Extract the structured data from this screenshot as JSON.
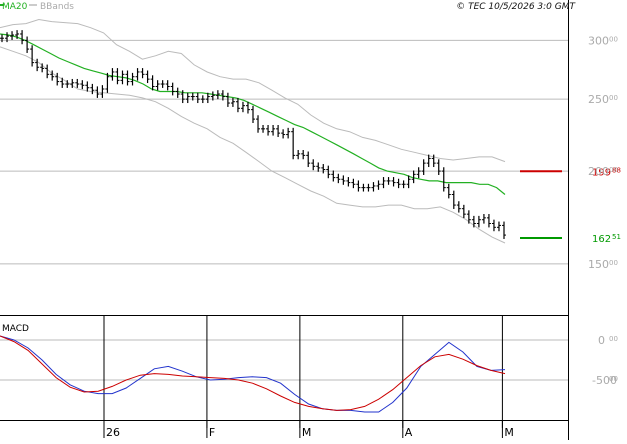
{
  "header": {
    "ma_label": "MA20",
    "bb_label": "BBands",
    "copyright": "© TEC 10/5/2026 3:0 GMT"
  },
  "colors": {
    "ma": "#22b022",
    "bbands": "#bbbbbb",
    "price_bars": "#000000",
    "grid": "#bbbbbb",
    "resistance": "#cc0000",
    "support": "#009900",
    "macd": "#2233cc",
    "signal": "#cc0000"
  },
  "chart_data": [
    {
      "type": "ohlc",
      "panel": "price",
      "scale": "log",
      "ylim": [
        128,
        340
      ],
      "yticks": [
        {
          "value": 150,
          "label": "150"
        },
        {
          "value": 200,
          "label": "200"
        },
        {
          "value": 250,
          "label": "250"
        },
        {
          "value": 300,
          "label": "300"
        }
      ],
      "tick_suffix": "00",
      "x_start": "2025-12-15",
      "x_labels": [
        {
          "label": "26",
          "date": "2026-01-01"
        },
        {
          "label": "F",
          "date": "2026-02-01"
        },
        {
          "label": "M",
          "date": "2026-03-01"
        },
        {
          "label": "A",
          "date": "2026-04-01"
        },
        {
          "label": "M",
          "date": "2026-05-01"
        }
      ],
      "grid": true,
      "levels": [
        {
          "name": "resistance",
          "value": 199.88,
          "int": "199",
          "dec": "88",
          "color": "#cc0000"
        },
        {
          "name": "support",
          "value": 162.51,
          "int": "162",
          "dec": "51",
          "color": "#009900"
        }
      ],
      "series": [
        {
          "name": "Price",
          "close": [
            302,
            304,
            305,
            306,
            300,
            292,
            280,
            276,
            275,
            270,
            268,
            264,
            262,
            262,
            263,
            262,
            261,
            259,
            257,
            254,
            258,
            268,
            272,
            265,
            270,
            264,
            268,
            272,
            270,
            266,
            260,
            262,
            262,
            260,
            256,
            254,
            250,
            252,
            252,
            250,
            250,
            252,
            253,
            254,
            252,
            247,
            248,
            243,
            245,
            242,
            235,
            228,
            228,
            226,
            228,
            225,
            224,
            226,
            210,
            211,
            210,
            205,
            203,
            202,
            201,
            198,
            196,
            195,
            194,
            193,
            192,
            190,
            190,
            190,
            191,
            192,
            194,
            194,
            193,
            192,
            192,
            195,
            198,
            200,
            205,
            208,
            205,
            200,
            190,
            186,
            180,
            178,
            175,
            172,
            170,
            172,
            173,
            170,
            168,
            169,
            164
          ]
        },
        {
          "name": "MA20",
          "values": [
            306,
            305,
            303,
            300,
            296,
            292,
            288,
            284,
            281,
            278,
            275,
            273,
            271,
            269,
            268,
            267,
            265,
            262,
            258,
            256,
            256,
            256,
            255,
            255,
            255,
            254,
            253,
            252,
            251,
            249,
            246,
            243,
            240,
            237,
            234,
            231,
            229,
            226,
            223,
            220,
            217,
            214,
            211,
            208,
            205,
            202,
            200,
            199,
            198,
            196,
            195,
            194,
            194,
            193,
            193,
            193,
            193,
            192,
            192,
            190,
            186
          ]
        },
        {
          "name": "BB Upper",
          "values": [
            312,
            315,
            316,
            320,
            318,
            317,
            316,
            312,
            307,
            296,
            290,
            283,
            286,
            290,
            288,
            278,
            272,
            268,
            266,
            266,
            263,
            257,
            251,
            246,
            238,
            232,
            228,
            226,
            222,
            220,
            217,
            214,
            212,
            210,
            208,
            207,
            208,
            209,
            209,
            206
          ]
        },
        {
          "name": "BB Lower",
          "values": [
            294,
            290,
            286,
            280,
            271,
            265,
            258,
            256,
            255,
            254,
            253,
            251,
            248,
            243,
            237,
            232,
            228,
            222,
            218,
            212,
            206,
            200,
            196,
            192,
            188,
            185,
            181,
            180,
            179,
            179,
            180,
            180,
            178,
            178,
            179,
            176,
            172,
            167,
            163,
            160
          ]
        }
      ]
    },
    {
      "type": "line",
      "panel": "indicator",
      "title": "MACD",
      "ylim": [
        -1000,
        300
      ],
      "yticks": [
        {
          "value": 0,
          "label": "0"
        },
        {
          "value": -500,
          "label": "-500"
        }
      ],
      "tick_suffix": "00",
      "series": [
        {
          "name": "MACD",
          "values": [
            50,
            0,
            -100,
            -250,
            -430,
            -560,
            -640,
            -670,
            -670,
            -600,
            -480,
            -360,
            -330,
            -390,
            -460,
            -500,
            -490,
            -470,
            -460,
            -470,
            -540,
            -680,
            -800,
            -860,
            -880,
            -880,
            -900,
            -900,
            -780,
            -600,
            -330,
            -180,
            -30,
            -150,
            -330,
            -380,
            -370
          ]
        },
        {
          "name": "Signal",
          "values": [
            50,
            -20,
            -130,
            -300,
            -470,
            -590,
            -650,
            -640,
            -580,
            -500,
            -440,
            -420,
            -430,
            -450,
            -460,
            -470,
            -480,
            -500,
            -540,
            -610,
            -700,
            -780,
            -830,
            -860,
            -880,
            -870,
            -830,
            -740,
            -620,
            -470,
            -320,
            -210,
            -180,
            -240,
            -320,
            -380,
            -420
          ]
        }
      ]
    }
  ]
}
